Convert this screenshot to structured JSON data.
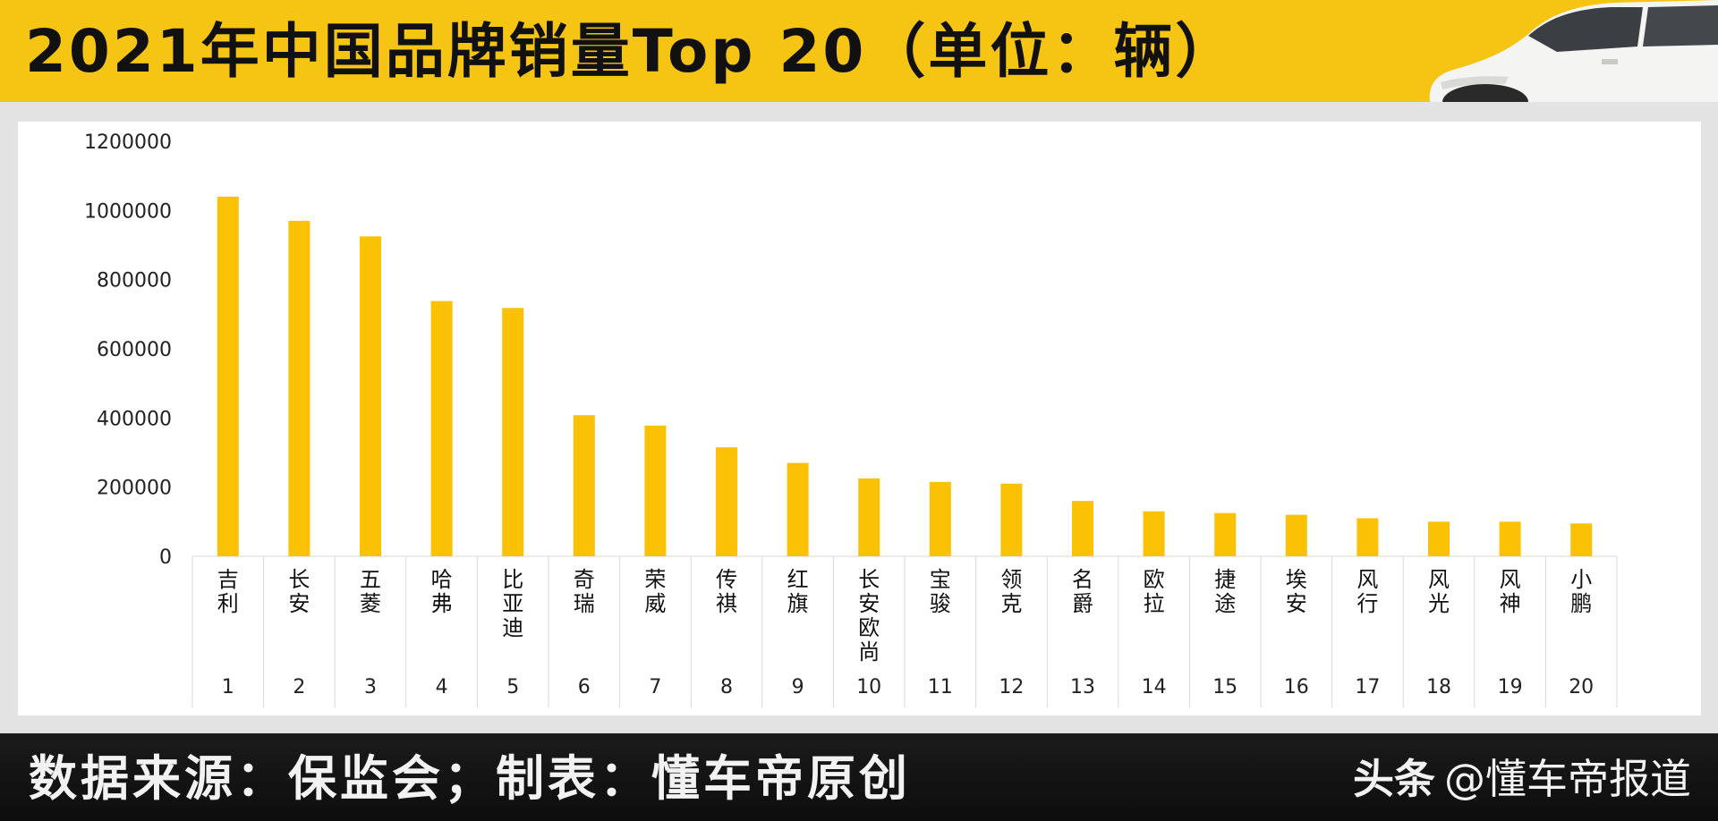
{
  "header": {
    "title": "2021年中国品牌销量Top 20（单位：辆）"
  },
  "footer": {
    "source_text": "数据来源：保监会；制表：懂车帝原创",
    "watermark_logo": "头条",
    "watermark_handle": "@懂车帝报道"
  },
  "colors": {
    "header_bg": "#f6c412",
    "bar": "#fbc105",
    "footer_bg": "#111111"
  },
  "chart_data": {
    "type": "bar",
    "title": "",
    "xlabel": "",
    "ylabel": "",
    "ylim": [
      0,
      1200000
    ],
    "yticks": [
      "0",
      "200000",
      "400000",
      "600000",
      "800000",
      "1000000",
      "1200000"
    ],
    "categories": [
      "吉利",
      "长安",
      "五菱",
      "哈弗",
      "比亚迪",
      "奇瑞",
      "荣威",
      "传祺",
      "红旗",
      "长安欧尚",
      "宝骏",
      "领克",
      "名爵",
      "欧拉",
      "捷途",
      "埃安",
      "风行",
      "风光",
      "风神",
      "小鹏"
    ],
    "ranks": [
      "1",
      "2",
      "3",
      "4",
      "5",
      "6",
      "7",
      "8",
      "9",
      "10",
      "11",
      "12",
      "13",
      "14",
      "15",
      "16",
      "17",
      "18",
      "19",
      "20"
    ],
    "values": [
      1040000,
      970000,
      925000,
      738000,
      718000,
      408000,
      378000,
      315000,
      270000,
      225000,
      215000,
      210000,
      160000,
      130000,
      125000,
      120000,
      110000,
      100000,
      100000,
      95000
    ],
    "grid": false,
    "legend": "none"
  }
}
